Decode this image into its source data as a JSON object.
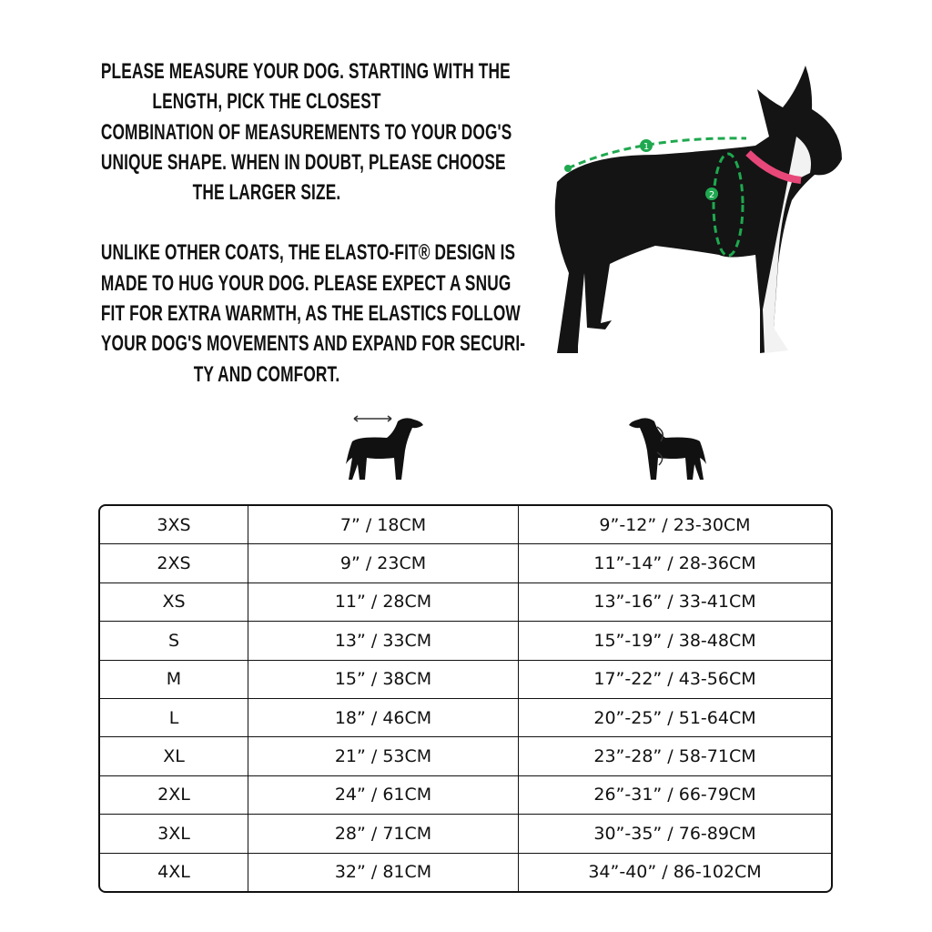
{
  "instructions": {
    "paragraph1": [
      "PLEASE MEASURE YOUR DOG. STARTING WITH THE",
      "LENGTH, PICK THE CLOSEST",
      "COMBINATION OF MEASUREMENTS TO YOUR DOG'S",
      "UNIQUE SHAPE. WHEN IN DOUBT, PLEASE CHOOSE",
      "THE LARGER SIZE."
    ],
    "paragraph2": [
      "UNLIKE OTHER COATS, THE ELASTO-FIT® DESIGN IS",
      "MADE TO HUG YOUR DOG. PLEASE EXPECT A SNUG",
      "FIT FOR EXTRA WARMTH, AS THE ELASTICS FOLLOW",
      "YOUR DOG'S MOVEMENTS AND EXPAND FOR SECURI-",
      "TY AND COMFORT."
    ]
  },
  "photo": {
    "markers": [
      "1",
      "2"
    ],
    "accent_color": "#1fa84f",
    "collar_color": "#e8477a"
  },
  "column_icons": [
    "dog-length-icon",
    "dog-chest-girth-icon"
  ],
  "size_table": {
    "rows": [
      [
        "3XS",
        "7” / 18CM",
        "9”-12” / 23-30CM"
      ],
      [
        "2XS",
        "9” / 23CM",
        "11”-14” / 28-36CM"
      ],
      [
        "XS",
        "11” / 28CM",
        "13”-16” / 33-41CM"
      ],
      [
        "S",
        "13” / 33CM",
        "15”-19” / 38-48CM"
      ],
      [
        "M",
        "15” / 38CM",
        "17”-22” / 43-56CM"
      ],
      [
        "L",
        "18” / 46CM",
        "20”-25” / 51-64CM"
      ],
      [
        "XL",
        "21” / 53CM",
        "23”-28” / 58-71CM"
      ],
      [
        "2XL",
        "24” / 61CM",
        "26”-31” / 66-79CM"
      ],
      [
        "3XL",
        "28” / 71CM",
        "30”-35” / 76-89CM"
      ],
      [
        "4XL",
        "32” / 81CM",
        "34”-40” / 86-102CM"
      ]
    ]
  }
}
